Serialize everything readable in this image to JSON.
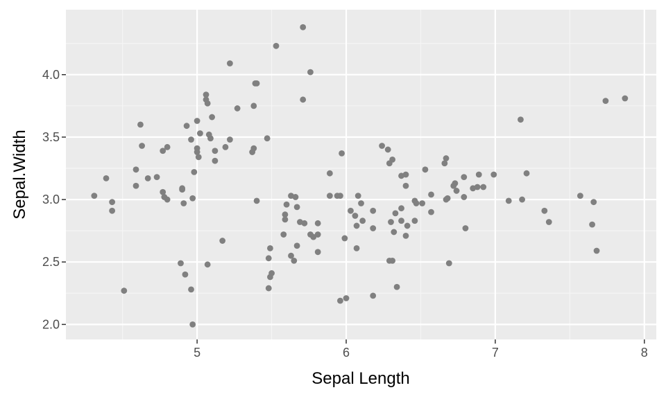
{
  "chart_data": {
    "type": "scatter",
    "title": "",
    "xlabel": "Sepal Length",
    "ylabel": "Sepal.Width",
    "xlim": [
      4.12,
      8.08
    ],
    "ylim": [
      1.88,
      4.52
    ],
    "x_ticks": [
      5,
      6,
      7,
      8
    ],
    "x_tick_labels": [
      "5",
      "6",
      "7",
      "8"
    ],
    "y_ticks": [
      2.0,
      2.5,
      3.0,
      3.5,
      4.0
    ],
    "y_tick_labels": [
      "2.0",
      "2.5",
      "3.0",
      "3.5",
      "4.0"
    ],
    "grid": true,
    "legend": "none",
    "colors": {
      "panel_background": "#ebebeb",
      "grid_major": "#ffffff",
      "grid_minor": "#f5f5f5",
      "point": "#808080",
      "tick": "#333333",
      "tick_label": "#4d4d4d",
      "axis_title": "#000000"
    },
    "points": [
      [
        4.31,
        3.03
      ],
      [
        4.39,
        3.17
      ],
      [
        4.43,
        2.98
      ],
      [
        4.43,
        2.91
      ],
      [
        4.51,
        2.27
      ],
      [
        4.59,
        3.24
      ],
      [
        4.59,
        3.11
      ],
      [
        4.62,
        3.6
      ],
      [
        4.63,
        3.43
      ],
      [
        4.67,
        3.17
      ],
      [
        4.73,
        3.18
      ],
      [
        4.77,
        3.39
      ],
      [
        4.77,
        3.06
      ],
      [
        4.78,
        3.02
      ],
      [
        4.8,
        3.42
      ],
      [
        4.8,
        3.0
      ],
      [
        4.89,
        2.49
      ],
      [
        4.9,
        3.09
      ],
      [
        4.9,
        3.08
      ],
      [
        4.91,
        2.97
      ],
      [
        4.92,
        2.4
      ],
      [
        4.93,
        3.59
      ],
      [
        4.96,
        3.48
      ],
      [
        4.96,
        2.28
      ],
      [
        4.97,
        3.01
      ],
      [
        4.97,
        2.0
      ],
      [
        4.98,
        3.22
      ],
      [
        5.0,
        3.63
      ],
      [
        5.0,
        3.41
      ],
      [
        5.0,
        3.38
      ],
      [
        5.01,
        3.34
      ],
      [
        5.02,
        3.53
      ],
      [
        5.06,
        3.84
      ],
      [
        5.06,
        3.8
      ],
      [
        5.07,
        3.77
      ],
      [
        5.07,
        2.48
      ],
      [
        5.08,
        3.52
      ],
      [
        5.09,
        3.49
      ],
      [
        5.1,
        3.66
      ],
      [
        5.12,
        3.39
      ],
      [
        5.12,
        3.31
      ],
      [
        5.17,
        2.67
      ],
      [
        5.19,
        3.42
      ],
      [
        5.22,
        4.09
      ],
      [
        5.22,
        3.48
      ],
      [
        5.27,
        3.73
      ],
      [
        5.37,
        3.38
      ],
      [
        5.38,
        3.41
      ],
      [
        5.38,
        3.75
      ],
      [
        5.39,
        3.93
      ],
      [
        5.4,
        3.93
      ],
      [
        5.4,
        2.99
      ],
      [
        5.47,
        3.49
      ],
      [
        5.48,
        2.53
      ],
      [
        5.48,
        2.29
      ],
      [
        5.49,
        2.61
      ],
      [
        5.49,
        2.38
      ],
      [
        5.5,
        2.41
      ],
      [
        5.53,
        4.23
      ],
      [
        5.58,
        2.72
      ],
      [
        5.59,
        2.88
      ],
      [
        5.59,
        2.84
      ],
      [
        5.6,
        2.96
      ],
      [
        5.63,
        3.03
      ],
      [
        5.63,
        2.55
      ],
      [
        5.65,
        2.51
      ],
      [
        5.66,
        3.02
      ],
      [
        5.67,
        2.94
      ],
      [
        5.67,
        2.63
      ],
      [
        5.69,
        2.82
      ],
      [
        5.71,
        4.38
      ],
      [
        5.71,
        3.8
      ],
      [
        5.72,
        2.81
      ],
      [
        5.76,
        4.02
      ],
      [
        5.76,
        2.72
      ],
      [
        5.78,
        2.7
      ],
      [
        5.81,
        2.81
      ],
      [
        5.81,
        2.72
      ],
      [
        5.81,
        2.58
      ],
      [
        5.89,
        3.21
      ],
      [
        5.89,
        3.03
      ],
      [
        5.94,
        3.03
      ],
      [
        5.96,
        3.03
      ],
      [
        5.96,
        2.19
      ],
      [
        5.97,
        3.37
      ],
      [
        5.99,
        2.69
      ],
      [
        6.0,
        2.21
      ],
      [
        6.03,
        2.91
      ],
      [
        6.06,
        2.87
      ],
      [
        6.07,
        2.79
      ],
      [
        6.07,
        2.61
      ],
      [
        6.08,
        3.03
      ],
      [
        6.1,
        2.97
      ],
      [
        6.11,
        2.83
      ],
      [
        6.18,
        2.91
      ],
      [
        6.18,
        2.77
      ],
      [
        6.18,
        2.23
      ],
      [
        6.24,
        3.43
      ],
      [
        6.28,
        3.4
      ],
      [
        6.29,
        3.29
      ],
      [
        6.29,
        2.51
      ],
      [
        6.3,
        2.82
      ],
      [
        6.31,
        3.32
      ],
      [
        6.31,
        2.51
      ],
      [
        6.32,
        2.74
      ],
      [
        6.33,
        2.89
      ],
      [
        6.34,
        2.3
      ],
      [
        6.37,
        3.19
      ],
      [
        6.37,
        2.93
      ],
      [
        6.37,
        2.83
      ],
      [
        6.4,
        3.2
      ],
      [
        6.4,
        3.11
      ],
      [
        6.4,
        2.71
      ],
      [
        6.41,
        2.79
      ],
      [
        6.46,
        2.99
      ],
      [
        6.46,
        2.83
      ],
      [
        6.47,
        2.97
      ],
      [
        6.51,
        2.97
      ],
      [
        6.53,
        3.24
      ],
      [
        6.57,
        3.04
      ],
      [
        6.57,
        2.9
      ],
      [
        6.66,
        3.29
      ],
      [
        6.67,
        3.33
      ],
      [
        6.67,
        3.0
      ],
      [
        6.68,
        3.01
      ],
      [
        6.69,
        2.49
      ],
      [
        6.72,
        3.11
      ],
      [
        6.73,
        3.13
      ],
      [
        6.74,
        3.07
      ],
      [
        6.79,
        3.18
      ],
      [
        6.79,
        3.02
      ],
      [
        6.8,
        2.77
      ],
      [
        6.85,
        3.09
      ],
      [
        6.88,
        3.1
      ],
      [
        6.89,
        3.2
      ],
      [
        6.92,
        3.1
      ],
      [
        6.99,
        3.2
      ],
      [
        7.09,
        2.99
      ],
      [
        7.17,
        3.64
      ],
      [
        7.18,
        3.0
      ],
      [
        7.21,
        3.21
      ],
      [
        7.33,
        2.91
      ],
      [
        7.36,
        2.82
      ],
      [
        7.57,
        3.03
      ],
      [
        7.65,
        2.8
      ],
      [
        7.66,
        2.98
      ],
      [
        7.68,
        2.59
      ],
      [
        7.74,
        3.79
      ],
      [
        7.87,
        3.81
      ]
    ]
  }
}
